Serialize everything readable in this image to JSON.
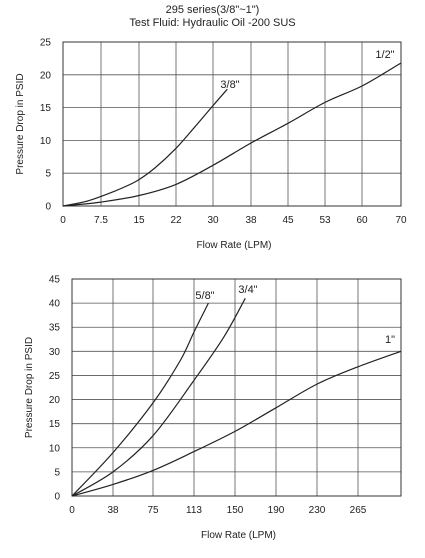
{
  "header": {
    "line1": "295 series(3/8\"~1\")",
    "line2": "Test Fluid: Hydraulic Oil -200 SUS"
  },
  "chart_data": [
    {
      "type": "line",
      "xlabel": "Flow Rate (LPM)",
      "ylabel": "Pressure Drop in PSID",
      "xlim": [
        0,
        70
      ],
      "ylim": [
        0,
        25
      ],
      "x_ticks": [
        "0",
        "7.5",
        "15",
        "22",
        "30",
        "38",
        "45",
        "53",
        "60",
        "70"
      ],
      "y_ticks": [
        "0",
        "5",
        "10",
        "15",
        "20",
        "25"
      ],
      "grid": true,
      "series": [
        {
          "name": "3/8\"",
          "x": [
            0,
            5,
            10,
            14.5,
            18,
            22,
            26,
            30,
            33
          ],
          "y": [
            0,
            0.8,
            2.2,
            3.8,
            5.8,
            8.8,
            12,
            15.3,
            17.8
          ]
        },
        {
          "name": "1/2\"",
          "x": [
            0,
            7.5,
            15,
            22,
            30,
            38,
            45,
            53,
            60,
            70
          ],
          "y": [
            0,
            0.6,
            1.6,
            3.3,
            6.2,
            9.6,
            12.6,
            15.8,
            18.3,
            21.8
          ]
        }
      ]
    },
    {
      "type": "line",
      "xlabel": "Flow Rate (LPM)",
      "ylabel": "Pressure Drop in PSID",
      "xlim": [
        0,
        305
      ],
      "ylim": [
        0,
        45
      ],
      "x_ticks": [
        "0",
        "38",
        "75",
        "113",
        "150",
        "190",
        "230",
        "265"
      ],
      "y_ticks": [
        "0",
        "5",
        "10",
        "15",
        "20",
        "25",
        "30",
        "35",
        "40",
        "45"
      ],
      "grid": true,
      "series": [
        {
          "name": "5/8\"",
          "x": [
            0,
            38,
            75,
            100,
            113,
            126
          ],
          "y": [
            0,
            9,
            19.3,
            28,
            34,
            40
          ]
        },
        {
          "name": "3/4\"",
          "x": [
            0,
            38,
            75,
            113,
            140,
            160
          ],
          "y": [
            0,
            5,
            12.5,
            24,
            33,
            41
          ]
        },
        {
          "name": "1\"",
          "x": [
            0,
            38,
            75,
            113,
            150,
            190,
            230,
            265,
            305
          ],
          "y": [
            0,
            2.4,
            5.3,
            9.2,
            13.4,
            18.3,
            23.2,
            26.8,
            30
          ]
        }
      ]
    }
  ]
}
